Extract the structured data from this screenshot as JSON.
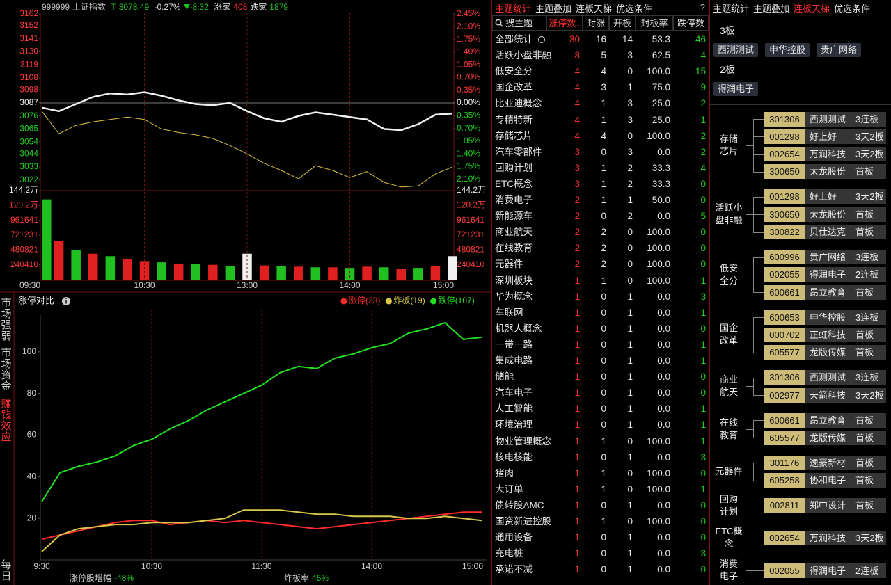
{
  "quote": {
    "code": "999999",
    "name": "上证指数",
    "t": "T",
    "price": "3078.49",
    "pct": "-0.27%",
    "change": "-8.32",
    "up_label": "涨家",
    "up": "408",
    "down_label": "跌家",
    "down": "1879"
  },
  "side_tabs": [
    "市场强弱",
    "市场资金",
    "赚钱效应",
    "每日"
  ],
  "chart_data": [
    {
      "type": "line",
      "x": [
        0,
        10,
        20,
        30,
        40,
        50,
        60,
        70,
        80,
        90,
        100,
        110,
        120,
        130,
        140,
        150,
        160,
        170,
        180,
        190,
        200,
        210,
        220,
        230,
        240
      ],
      "xlim": [
        0,
        240
      ],
      "xticks": [
        {
          "value": 0,
          "label": "09:30"
        },
        {
          "value": 60,
          "label": "10:30"
        },
        {
          "value": 120,
          "label": "13:00"
        },
        {
          "value": 180,
          "label": "14:00"
        },
        {
          "value": 240,
          "label": "15:00"
        }
      ],
      "ylim": [
        3013,
        3162
      ],
      "yticks": [
        3162,
        3152,
        3141,
        3130,
        3119,
        3108,
        3098,
        3087,
        3076,
        3065,
        3054,
        3044,
        3033,
        3022
      ],
      "y2lim": [
        -2.41,
        2.45
      ],
      "y2ticks": [
        {
          "value": 2.45,
          "label": "2.45%"
        },
        {
          "value": 2.1,
          "label": "2.10%"
        },
        {
          "value": 1.75,
          "label": "1.75%"
        },
        {
          "value": 1.4,
          "label": "1.40%"
        },
        {
          "value": 1.05,
          "label": "1.05%"
        },
        {
          "value": 0.7,
          "label": "0.70%"
        },
        {
          "value": 0.35,
          "label": "0.35%"
        },
        {
          "value": 0,
          "label": "0.00%"
        },
        {
          "value": -0.35,
          "label": "0.35%"
        },
        {
          "value": -0.7,
          "label": "0.70%"
        },
        {
          "value": -1.05,
          "label": "1.05%"
        },
        {
          "value": -1.4,
          "label": "1.40%"
        },
        {
          "value": -1.75,
          "label": "1.75%"
        },
        {
          "value": -2.1,
          "label": "2.10%"
        }
      ],
      "series": [
        {
          "color": "#f0f0f0",
          "values": [
            3083,
            3080,
            3086,
            3092,
            3095,
            3094,
            3096,
            3093,
            3089,
            3086,
            3085,
            3087,
            3080,
            3074,
            3071,
            3076,
            3079,
            3077,
            3075,
            3073,
            3065,
            3064,
            3069,
            3077,
            3078
          ]
        },
        {
          "color": "#d8c040",
          "values": [
            3080,
            3061,
            3068,
            3071,
            3073,
            3075,
            3073,
            3065,
            3062,
            3060,
            3057,
            3051,
            3044,
            3036,
            3030,
            3023,
            3034,
            3030,
            3024,
            3029,
            3020,
            3016,
            3017,
            3027,
            3033
          ]
        }
      ],
      "volume": {
        "ylim": [
          0,
          1442000
        ],
        "yticks": [
          {
            "value": 1442000,
            "label": "144.2万"
          },
          {
            "value": 1202000,
            "label": "120.2万"
          },
          961641,
          721231,
          480821,
          240410
        ],
        "values": [
          1300000,
          620000,
          480000,
          420000,
          380000,
          330000,
          300000,
          280000,
          260000,
          250000,
          240000,
          220000,
          420000,
          230000,
          220000,
          210000,
          200000,
          200000,
          190000,
          210000,
          200000,
          180000,
          190000,
          220000,
          380000
        ],
        "colors": [
          "#20c020",
          "#e02020",
          "#20c020",
          "#e02020",
          "#20c020",
          "#e02020",
          "#e02020",
          "#20c020",
          "#e02020",
          "#20c020",
          "#e02020",
          "#20c020",
          "#f0f0f0",
          "#e02020",
          "#20c020",
          "#e02020",
          "#20c020",
          "#e02020",
          "#20c020",
          "#e02020",
          "#20c020",
          "#e02020",
          "#20c020",
          "#e02020",
          "#f0f0f0"
        ]
      }
    },
    {
      "type": "line",
      "title": "涨停对比",
      "legend": "top-right",
      "x": [
        0,
        10,
        20,
        30,
        40,
        50,
        60,
        70,
        80,
        90,
        100,
        110,
        120,
        130,
        140,
        150,
        160,
        170,
        180,
        190,
        200,
        210,
        220,
        230,
        240
      ],
      "xlim": [
        0,
        240
      ],
      "xticks": [
        {
          "value": 0,
          "label": "9:30"
        },
        {
          "value": 60,
          "label": "10:30"
        },
        {
          "value": 120,
          "label": "11:30"
        },
        {
          "value": 180,
          "label": "14:00"
        },
        {
          "value": 240,
          "label": "15:00"
        }
      ],
      "ylim": [
        0,
        117
      ],
      "yticks": [
        20,
        40,
        60,
        80,
        100
      ],
      "series": [
        {
          "name": "涨停(23)",
          "color": "#ff2a2a",
          "values": [
            10,
            12,
            14,
            16,
            18,
            19,
            19,
            17,
            18,
            19,
            18,
            19,
            18,
            17,
            16,
            15,
            16,
            17,
            18,
            19,
            20,
            21,
            22,
            23,
            23
          ]
        },
        {
          "name": "炸板(19)",
          "color": "#d8c84a",
          "values": [
            4,
            12,
            15,
            16,
            17,
            17,
            18,
            18,
            18,
            19,
            20,
            24,
            24,
            24,
            23,
            22,
            22,
            21,
            21,
            21,
            20,
            20,
            21,
            20,
            19
          ]
        },
        {
          "name": "跌停(107)",
          "color": "#22e022",
          "values": [
            28,
            42,
            45,
            47,
            50,
            55,
            58,
            63,
            67,
            72,
            76,
            80,
            84,
            90,
            93,
            92,
            97,
            99,
            102,
            104,
            109,
            111,
            114,
            106,
            107
          ]
        }
      ],
      "notes": [
        {
          "label": "涨停股增幅",
          "value": "-48%"
        },
        {
          "label": "炸板率",
          "value": "45%"
        }
      ]
    }
  ],
  "theme_table": {
    "tabs": [
      "主题统计",
      "主题叠加",
      "连板天梯",
      "优选条件"
    ],
    "help": "?",
    "columns": [
      "搜主题",
      "涨停数↓",
      "封涨",
      "开板",
      "封板率",
      "跌停数"
    ],
    "rows": [
      [
        "全部统计",
        "30",
        "16",
        "14",
        "53.3",
        "46"
      ],
      [
        "活跃小盘非融",
        "8",
        "5",
        "3",
        "62.5",
        "4"
      ],
      [
        "低安全分",
        "4",
        "4",
        "0",
        "100.0",
        "15"
      ],
      [
        "国企改革",
        "4",
        "3",
        "1",
        "75.0",
        "9"
      ],
      [
        "比亚迪概念",
        "4",
        "1",
        "3",
        "25.0",
        "2"
      ],
      [
        "专精特新",
        "4",
        "1",
        "3",
        "25.0",
        "1"
      ],
      [
        "存储芯片",
        "4",
        "4",
        "0",
        "100.0",
        "2"
      ],
      [
        "汽车零部件",
        "3",
        "0",
        "3",
        "0.0",
        "2"
      ],
      [
        "回购计划",
        "3",
        "1",
        "2",
        "33.3",
        "4"
      ],
      [
        "ETC概念",
        "3",
        "1",
        "2",
        "33.3",
        "0"
      ],
      [
        "消费电子",
        "2",
        "1",
        "1",
        "50.0",
        "0"
      ],
      [
        "新能源车",
        "2",
        "0",
        "2",
        "0.0",
        "5"
      ],
      [
        "商业航天",
        "2",
        "2",
        "0",
        "100.0",
        "0"
      ],
      [
        "在线教育",
        "2",
        "2",
        "0",
        "100.0",
        "0"
      ],
      [
        "元器件",
        "2",
        "2",
        "0",
        "100.0",
        "0"
      ],
      [
        "深圳板块",
        "1",
        "1",
        "0",
        "100.0",
        "1"
      ],
      [
        "华为概念",
        "1",
        "0",
        "1",
        "0.0",
        "3"
      ],
      [
        "车联网",
        "1",
        "0",
        "1",
        "0.0",
        "1"
      ],
      [
        "机器人概念",
        "1",
        "0",
        "1",
        "0.0",
        "0"
      ],
      [
        "一带一路",
        "1",
        "0",
        "1",
        "0.0",
        "1"
      ],
      [
        "集成电路",
        "1",
        "0",
        "1",
        "0.0",
        "1"
      ],
      [
        "储能",
        "1",
        "0",
        "1",
        "0.0",
        "0"
      ],
      [
        "汽车电子",
        "1",
        "0",
        "1",
        "0.0",
        "0"
      ],
      [
        "人工智能",
        "1",
        "0",
        "1",
        "0.0",
        "1"
      ],
      [
        "环境治理",
        "1",
        "0",
        "1",
        "0.0",
        "1"
      ],
      [
        "物业管理概念",
        "1",
        "1",
        "0",
        "100.0",
        "1"
      ],
      [
        "核电核能",
        "1",
        "0",
        "1",
        "0.0",
        "3"
      ],
      [
        "猪肉",
        "1",
        "1",
        "0",
        "100.0",
        "0"
      ],
      [
        "大订单",
        "1",
        "1",
        "0",
        "100.0",
        "1"
      ],
      [
        "债转股AMC",
        "1",
        "0",
        "1",
        "0.0",
        "0"
      ],
      [
        "国资新进控股",
        "1",
        "1",
        "0",
        "100.0",
        "0"
      ],
      [
        "通用设备",
        "1",
        "0",
        "1",
        "0.0",
        "0"
      ],
      [
        "充电桩",
        "1",
        "0",
        "1",
        "0.0",
        "3"
      ],
      [
        "承诺不减",
        "1",
        "0",
        "1",
        "0.0",
        "0"
      ]
    ]
  },
  "ladder": {
    "tabs": [
      "主题统计",
      "主题叠加",
      "连板天梯",
      "优选条件"
    ],
    "levels": [
      {
        "label": "3板",
        "stocks": [
          "西测测试",
          "申华控股",
          "贵广网络"
        ]
      },
      {
        "label": "2板",
        "stocks": [
          "得润电子"
        ]
      }
    ],
    "groups": [
      {
        "theme": "存储芯片",
        "items": [
          {
            "code": "301306",
            "name": "西测测试",
            "tag": "3连板"
          },
          {
            "code": "001298",
            "name": "好上好",
            "tag": "3天2板"
          },
          {
            "code": "002654",
            "name": "万润科技",
            "tag": "3天2板"
          },
          {
            "code": "300650",
            "name": "太龙股份",
            "tag": "首板"
          }
        ]
      },
      {
        "theme": "活跃小盘非融",
        "items": [
          {
            "code": "001298",
            "name": "好上好",
            "tag": "3天2板"
          },
          {
            "code": "300650",
            "name": "太龙股份",
            "tag": "首板"
          },
          {
            "code": "300822",
            "name": "贝仕达克",
            "tag": "首板"
          }
        ]
      },
      {
        "theme": "低安全分",
        "items": [
          {
            "code": "600996",
            "name": "贵广网络",
            "tag": "3连板"
          },
          {
            "code": "002055",
            "name": "得润电子",
            "tag": "2连板"
          },
          {
            "code": "600661",
            "name": "昂立教育",
            "tag": "首板"
          }
        ]
      },
      {
        "theme": "国企改革",
        "items": [
          {
            "code": "600653",
            "name": "申华控股",
            "tag": "3连板"
          },
          {
            "code": "000702",
            "name": "正虹科技",
            "tag": "首板"
          },
          {
            "code": "605577",
            "name": "龙版传媒",
            "tag": "首板"
          }
        ]
      },
      {
        "theme": "商业航天",
        "items": [
          {
            "code": "301306",
            "name": "西测测试",
            "tag": "3连板"
          },
          {
            "code": "002977",
            "name": "天箭科技",
            "tag": "3天2板"
          }
        ]
      },
      {
        "theme": "在线教育",
        "items": [
          {
            "code": "600661",
            "name": "昂立教育",
            "tag": "首板"
          },
          {
            "code": "605577",
            "name": "龙版传媒",
            "tag": "首板"
          }
        ]
      },
      {
        "theme": "元器件",
        "items": [
          {
            "code": "301176",
            "name": "逸豪新材",
            "tag": "首板"
          },
          {
            "code": "605258",
            "name": "协和电子",
            "tag": "首板"
          }
        ]
      },
      {
        "theme": "回购计划",
        "items": [
          {
            "code": "002811",
            "name": "郑中设计",
            "tag": "首板"
          }
        ]
      },
      {
        "theme": "ETC概念",
        "items": [
          {
            "code": "002654",
            "name": "万润科技",
            "tag": "3天2板"
          }
        ]
      },
      {
        "theme": "消费电子",
        "items": [
          {
            "code": "002055",
            "name": "得润电子",
            "tag": "2连板"
          }
        ]
      }
    ]
  }
}
